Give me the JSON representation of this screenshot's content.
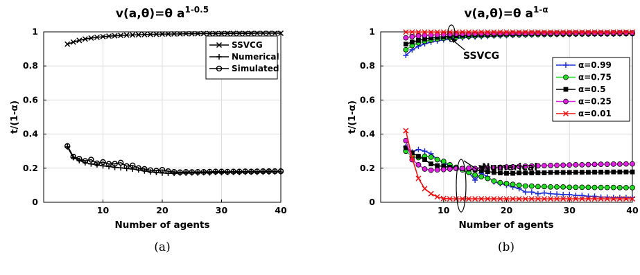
{
  "chart_data": [
    {
      "type": "line",
      "title": "v(a,θ)=θ a",
      "title_exponent": "1-0.5",
      "xlabel": "Number of agents",
      "ylabel": "t/(1-α)",
      "xlim": [
        0,
        40
      ],
      "ylim": [
        0,
        1
      ],
      "xticks": [
        10,
        20,
        30,
        40
      ],
      "yticks": [
        0,
        0.2,
        0.4,
        0.6,
        0.8,
        1
      ],
      "ytick_labels": [
        "0",
        "0.2",
        "0.4",
        "0.6",
        "0.8",
        "1"
      ],
      "grid": true,
      "legend_position": "top-right",
      "caption": "(a)",
      "x": [
        4,
        5,
        6,
        7,
        8,
        9,
        10,
        11,
        12,
        13,
        14,
        15,
        16,
        17,
        18,
        19,
        20,
        21,
        22,
        23,
        24,
        25,
        26,
        27,
        28,
        29,
        30,
        31,
        32,
        33,
        34,
        35,
        36,
        37,
        38,
        39,
        40
      ],
      "series": [
        {
          "name": "SSVCG",
          "marker": "x",
          "color": "#000000",
          "values": [
            0.928,
            0.94,
            0.95,
            0.958,
            0.964,
            0.968,
            0.972,
            0.975,
            0.977,
            0.979,
            0.981,
            0.982,
            0.983,
            0.984,
            0.985,
            0.986,
            0.987,
            0.987,
            0.988,
            0.988,
            0.989,
            0.989,
            0.989,
            0.99,
            0.99,
            0.99,
            0.99,
            0.991,
            0.991,
            0.991,
            0.991,
            0.991,
            0.992,
            0.992,
            0.992,
            0.992,
            0.992
          ]
        },
        {
          "name": "Numerical",
          "marker": "+",
          "color": "#000000",
          "values": [
            0.325,
            0.262,
            0.245,
            0.232,
            0.225,
            0.22,
            0.214,
            0.21,
            0.205,
            0.202,
            0.198,
            0.195,
            0.19,
            0.184,
            0.178,
            0.175,
            0.172,
            0.17,
            0.17,
            0.172,
            0.171,
            0.173,
            0.172,
            0.174,
            0.173,
            0.175,
            0.174,
            0.175,
            0.176,
            0.175,
            0.176,
            0.177,
            0.176,
            0.177,
            0.178,
            0.178,
            0.178
          ]
        },
        {
          "name": "Simulated",
          "marker": "o",
          "color": "#000000",
          "values": [
            0.33,
            0.268,
            0.255,
            0.242,
            0.25,
            0.228,
            0.236,
            0.225,
            0.226,
            0.232,
            0.212,
            0.216,
            0.2,
            0.195,
            0.188,
            0.185,
            0.19,
            0.182,
            0.178,
            0.176,
            0.178,
            0.177,
            0.178,
            0.178,
            0.179,
            0.18,
            0.18,
            0.179,
            0.18,
            0.18,
            0.181,
            0.18,
            0.181,
            0.182,
            0.182,
            0.182,
            0.182
          ]
        }
      ]
    },
    {
      "type": "line",
      "title": "v(a,θ)=θ a",
      "title_exponent": "1-α",
      "xlabel": "Number of agents",
      "ylabel": "t/(1-α)",
      "xlim": [
        0,
        40
      ],
      "ylim": [
        0,
        1
      ],
      "xticks": [
        10,
        20,
        30,
        40
      ],
      "yticks": [
        0,
        0.2,
        0.4,
        0.6,
        0.8,
        1
      ],
      "ytick_labels": [
        "0",
        "0.2",
        "0.4",
        "0.6",
        "0.8",
        "1"
      ],
      "grid": true,
      "legend_position": "right",
      "caption": "(b)",
      "annotations": [
        "SSVCG",
        "Numerical"
      ],
      "x": [
        4,
        5,
        6,
        7,
        8,
        9,
        10,
        11,
        12,
        13,
        14,
        15,
        16,
        17,
        18,
        19,
        20,
        21,
        22,
        23,
        24,
        25,
        26,
        27,
        28,
        29,
        30,
        31,
        32,
        33,
        34,
        35,
        36,
        37,
        38,
        39,
        40
      ],
      "series": [
        {
          "name": "α=0.99",
          "marker": "+",
          "color": "#1f2fd6",
          "ssvcg": [
            0.862,
            0.895,
            0.915,
            0.93,
            0.94,
            0.947,
            0.953,
            0.958,
            0.962,
            0.965,
            0.968,
            0.97,
            0.972,
            0.974,
            0.976,
            0.977,
            0.978,
            0.979,
            0.98,
            0.981,
            0.982,
            0.983,
            0.983,
            0.984,
            0.985,
            0.985,
            0.986,
            0.986,
            0.987,
            0.987,
            0.987,
            0.988,
            0.988,
            0.988,
            0.989,
            0.989,
            0.989
          ],
          "numerical": [
            0.325,
            0.295,
            0.31,
            0.3,
            0.285,
            0.25,
            0.23,
            0.215,
            0.2,
            0.19,
            0.175,
            0.13,
            0.17,
            0.15,
            0.12,
            0.11,
            0.1,
            0.09,
            0.08,
            0.06,
            0.06,
            0.05,
            0.055,
            0.05,
            0.048,
            0.045,
            0.045,
            0.04,
            0.04,
            0.035,
            0.035,
            0.03,
            0.03,
            0.028,
            0.028,
            0.028,
            0.028
          ]
        },
        {
          "name": "α=0.75",
          "marker": "o",
          "color": "#22dd22",
          "ssvcg": [
            0.895,
            0.92,
            0.935,
            0.945,
            0.952,
            0.958,
            0.963,
            0.966,
            0.969,
            0.972,
            0.974,
            0.976,
            0.977,
            0.979,
            0.98,
            0.981,
            0.982,
            0.983,
            0.983,
            0.984,
            0.985,
            0.985,
            0.986,
            0.986,
            0.987,
            0.987,
            0.987,
            0.988,
            0.988,
            0.988,
            0.989,
            0.989,
            0.989,
            0.989,
            0.99,
            0.99,
            0.99
          ],
          "numerical": [
            0.3,
            0.268,
            0.262,
            0.27,
            0.265,
            0.25,
            0.24,
            0.22,
            0.205,
            0.19,
            0.175,
            0.16,
            0.15,
            0.14,
            0.125,
            0.115,
            0.11,
            0.105,
            0.1,
            0.095,
            0.095,
            0.092,
            0.092,
            0.09,
            0.09,
            0.09,
            0.088,
            0.088,
            0.088,
            0.088,
            0.087,
            0.087,
            0.087,
            0.087,
            0.086,
            0.086,
            0.086
          ]
        },
        {
          "name": "α=0.5",
          "marker": "s",
          "color": "#000000",
          "ssvcg": [
            0.928,
            0.94,
            0.95,
            0.958,
            0.964,
            0.968,
            0.972,
            0.975,
            0.977,
            0.979,
            0.981,
            0.982,
            0.983,
            0.984,
            0.985,
            0.986,
            0.987,
            0.987,
            0.988,
            0.988,
            0.989,
            0.989,
            0.989,
            0.99,
            0.99,
            0.99,
            0.99,
            0.991,
            0.991,
            0.991,
            0.991,
            0.991,
            0.992,
            0.992,
            0.992,
            0.992,
            0.992
          ],
          "numerical": [
            0.32,
            0.29,
            0.27,
            0.25,
            0.225,
            0.215,
            0.21,
            0.205,
            0.2,
            0.198,
            0.195,
            0.19,
            0.185,
            0.18,
            0.175,
            0.172,
            0.17,
            0.17,
            0.172,
            0.172,
            0.172,
            0.173,
            0.173,
            0.175,
            0.175,
            0.175,
            0.175,
            0.176,
            0.176,
            0.176,
            0.177,
            0.177,
            0.177,
            0.178,
            0.178,
            0.178,
            0.178
          ]
        },
        {
          "name": "α=0.25",
          "marker": "o",
          "color": "#e020e0",
          "ssvcg": [
            0.965,
            0.972,
            0.976,
            0.979,
            0.981,
            0.983,
            0.985,
            0.986,
            0.987,
            0.988,
            0.988,
            0.989,
            0.99,
            0.99,
            0.991,
            0.991,
            0.991,
            0.992,
            0.992,
            0.992,
            0.992,
            0.993,
            0.993,
            0.993,
            0.993,
            0.993,
            0.994,
            0.994,
            0.994,
            0.994,
            0.994,
            0.994,
            0.994,
            0.995,
            0.995,
            0.995,
            0.995
          ],
          "numerical": [
            0.362,
            0.25,
            0.22,
            0.195,
            0.188,
            0.19,
            0.192,
            0.195,
            0.198,
            0.198,
            0.2,
            0.198,
            0.2,
            0.202,
            0.203,
            0.205,
            0.207,
            0.208,
            0.21,
            0.212,
            0.213,
            0.214,
            0.215,
            0.216,
            0.217,
            0.218,
            0.219,
            0.22,
            0.22,
            0.221,
            0.222,
            0.223,
            0.223,
            0.224,
            0.224,
            0.225,
            0.225
          ]
        },
        {
          "name": "α=0.01",
          "marker": "x",
          "color": "#ee1111",
          "ssvcg": [
            0.999,
            0.999,
            0.999,
            0.999,
            0.999,
            0.999,
            0.999,
            0.999,
            0.999,
            0.999,
            0.999,
            0.999,
            0.999,
            0.999,
            0.999,
            0.999,
            0.999,
            0.999,
            0.999,
            0.999,
            0.999,
            0.999,
            0.999,
            0.999,
            0.999,
            0.999,
            0.999,
            0.999,
            0.999,
            0.999,
            0.999,
            0.999,
            0.999,
            0.999,
            0.999,
            0.999,
            0.999
          ],
          "numerical": [
            0.42,
            0.26,
            0.14,
            0.08,
            0.05,
            0.032,
            0.022,
            0.02,
            0.02,
            0.02,
            0.02,
            0.02,
            0.02,
            0.02,
            0.02,
            0.02,
            0.02,
            0.02,
            0.02,
            0.02,
            0.02,
            0.02,
            0.02,
            0.02,
            0.02,
            0.02,
            0.02,
            0.02,
            0.02,
            0.02,
            0.02,
            0.02,
            0.02,
            0.02,
            0.02,
            0.02,
            0.02
          ]
        }
      ]
    }
  ]
}
